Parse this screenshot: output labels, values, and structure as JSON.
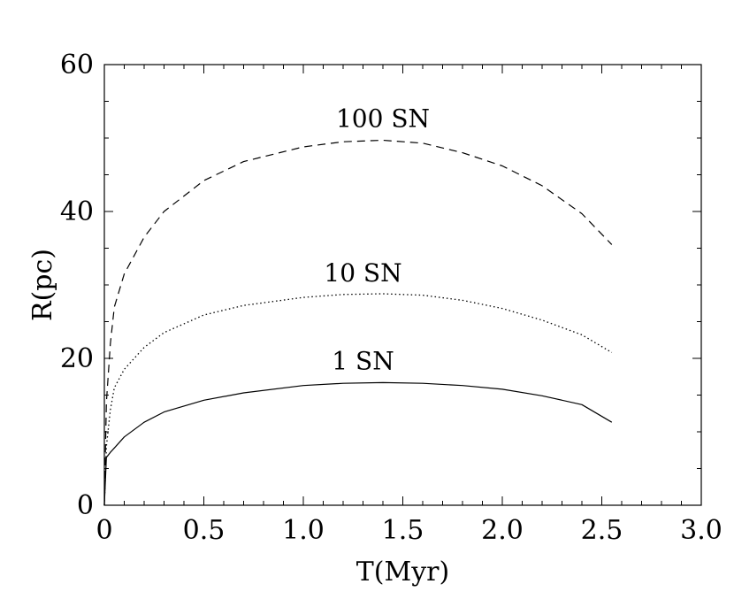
{
  "chart_data": {
    "type": "line",
    "xlabel": "T(Myr)",
    "ylabel": "R(pc)",
    "xlim": [
      0,
      3.0
    ],
    "ylim": [
      0,
      60
    ],
    "x_ticks": [
      "0",
      "0.5",
      "1.0",
      "1.5",
      "2.0",
      "2.5",
      "3.0"
    ],
    "y_ticks": [
      "0",
      "20",
      "40",
      "60"
    ],
    "x_tick_values": [
      0,
      0.5,
      1.0,
      1.5,
      2.0,
      2.5,
      3.0
    ],
    "y_tick_values": [
      0,
      20,
      40,
      60
    ],
    "grid": false,
    "series": [
      {
        "name": "100 SN",
        "style": "dashed",
        "x": [
          0,
          0.01,
          0.03,
          0.05,
          0.1,
          0.2,
          0.3,
          0.5,
          0.7,
          1.0,
          1.2,
          1.4,
          1.6,
          1.8,
          2.0,
          2.2,
          2.4,
          2.55
        ],
        "y": [
          0,
          14,
          22,
          27,
          31.5,
          36.5,
          40,
          44.2,
          46.8,
          48.8,
          49.5,
          49.7,
          49.3,
          48.0,
          46.2,
          43.5,
          39.7,
          35.5
        ]
      },
      {
        "name": "10 SN",
        "style": "dotted",
        "x": [
          0,
          0.01,
          0.03,
          0.05,
          0.1,
          0.2,
          0.3,
          0.5,
          0.7,
          1.0,
          1.2,
          1.4,
          1.6,
          1.8,
          2.0,
          2.2,
          2.4,
          2.55
        ],
        "y": [
          0,
          8,
          13,
          16,
          18.5,
          21.5,
          23.5,
          25.9,
          27.2,
          28.3,
          28.7,
          28.8,
          28.6,
          27.9,
          26.8,
          25.2,
          23.2,
          20.8
        ]
      },
      {
        "name": "1 SN",
        "style": "solid",
        "x": [
          0,
          0.01,
          0.03,
          0.05,
          0.1,
          0.2,
          0.3,
          0.5,
          0.7,
          1.0,
          1.2,
          1.4,
          1.6,
          1.8,
          2.0,
          2.2,
          2.4,
          2.55
        ],
        "y": [
          0,
          6.5,
          7.2,
          7.8,
          9.3,
          11.3,
          12.7,
          14.3,
          15.3,
          16.3,
          16.6,
          16.7,
          16.6,
          16.3,
          15.8,
          14.9,
          13.7,
          11.3
        ]
      }
    ],
    "annotations": [
      {
        "text": "100 SN",
        "x": 1.4,
        "y": 51.5
      },
      {
        "text": "10 SN",
        "x": 1.3,
        "y": 30.5
      },
      {
        "text": "1 SN",
        "x": 1.3,
        "y": 18.5
      }
    ]
  }
}
